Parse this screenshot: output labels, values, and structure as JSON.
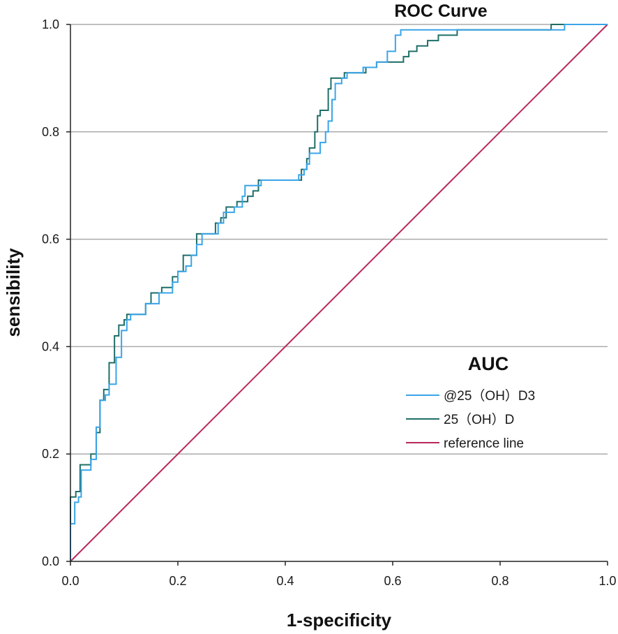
{
  "chart_data": {
    "type": "line",
    "title": "ROC Curve",
    "xlabel": "1-specificity",
    "ylabel": "sensibility",
    "xlim": [
      0,
      1
    ],
    "ylim": [
      0,
      1
    ],
    "xticks": [
      0,
      0.2,
      0.4,
      0.6,
      0.8,
      1.0
    ],
    "xtick_labels": [
      "0.0",
      "0.2",
      "0.4",
      "0.6",
      "0.8",
      "1.0"
    ],
    "yticks": [
      0,
      0.2,
      0.4,
      0.6,
      0.8,
      1.0
    ],
    "ytick_labels": [
      "0.0",
      "0.2",
      "0.4",
      "0.6",
      "0.8",
      "1.0"
    ],
    "grid_y": true,
    "legend_title": "AUC",
    "colors": {
      "axis": "#222222",
      "grid": "#ababab"
    },
    "series": [
      {
        "name": "@25（OH）D3",
        "color": "#3aa4e8",
        "points": [
          [
            0,
            0
          ],
          [
            0,
            0.07
          ],
          [
            0.008,
            0.07
          ],
          [
            0.008,
            0.11
          ],
          [
            0.015,
            0.11
          ],
          [
            0.015,
            0.12
          ],
          [
            0.02,
            0.12
          ],
          [
            0.02,
            0.17
          ],
          [
            0.038,
            0.17
          ],
          [
            0.038,
            0.19
          ],
          [
            0.048,
            0.19
          ],
          [
            0.048,
            0.25
          ],
          [
            0.055,
            0.25
          ],
          [
            0.055,
            0.3
          ],
          [
            0.065,
            0.3
          ],
          [
            0.065,
            0.31
          ],
          [
            0.072,
            0.31
          ],
          [
            0.072,
            0.33
          ],
          [
            0.085,
            0.33
          ],
          [
            0.085,
            0.38
          ],
          [
            0.095,
            0.38
          ],
          [
            0.095,
            0.43
          ],
          [
            0.105,
            0.43
          ],
          [
            0.105,
            0.45
          ],
          [
            0.112,
            0.45
          ],
          [
            0.112,
            0.46
          ],
          [
            0.14,
            0.46
          ],
          [
            0.14,
            0.48
          ],
          [
            0.165,
            0.48
          ],
          [
            0.165,
            0.5
          ],
          [
            0.19,
            0.5
          ],
          [
            0.19,
            0.52
          ],
          [
            0.2,
            0.52
          ],
          [
            0.2,
            0.54
          ],
          [
            0.215,
            0.54
          ],
          [
            0.215,
            0.55
          ],
          [
            0.225,
            0.55
          ],
          [
            0.225,
            0.57
          ],
          [
            0.235,
            0.57
          ],
          [
            0.235,
            0.59
          ],
          [
            0.245,
            0.59
          ],
          [
            0.245,
            0.61
          ],
          [
            0.275,
            0.61
          ],
          [
            0.275,
            0.63
          ],
          [
            0.285,
            0.63
          ],
          [
            0.285,
            0.65
          ],
          [
            0.305,
            0.65
          ],
          [
            0.305,
            0.66
          ],
          [
            0.32,
            0.66
          ],
          [
            0.32,
            0.68
          ],
          [
            0.325,
            0.68
          ],
          [
            0.325,
            0.7
          ],
          [
            0.355,
            0.7
          ],
          [
            0.355,
            0.71
          ],
          [
            0.425,
            0.71
          ],
          [
            0.425,
            0.72
          ],
          [
            0.435,
            0.72
          ],
          [
            0.435,
            0.73
          ],
          [
            0.44,
            0.73
          ],
          [
            0.44,
            0.74
          ],
          [
            0.445,
            0.74
          ],
          [
            0.445,
            0.76
          ],
          [
            0.465,
            0.76
          ],
          [
            0.465,
            0.78
          ],
          [
            0.475,
            0.78
          ],
          [
            0.475,
            0.8
          ],
          [
            0.48,
            0.8
          ],
          [
            0.48,
            0.82
          ],
          [
            0.487,
            0.82
          ],
          [
            0.487,
            0.86
          ],
          [
            0.493,
            0.86
          ],
          [
            0.493,
            0.89
          ],
          [
            0.505,
            0.89
          ],
          [
            0.505,
            0.9
          ],
          [
            0.515,
            0.9
          ],
          [
            0.515,
            0.91
          ],
          [
            0.545,
            0.91
          ],
          [
            0.545,
            0.92
          ],
          [
            0.57,
            0.92
          ],
          [
            0.57,
            0.93
          ],
          [
            0.59,
            0.93
          ],
          [
            0.59,
            0.95
          ],
          [
            0.605,
            0.95
          ],
          [
            0.605,
            0.98
          ],
          [
            0.615,
            0.98
          ],
          [
            0.615,
            0.99
          ],
          [
            0.92,
            0.99
          ],
          [
            0.92,
            1.0
          ],
          [
            1,
            1
          ]
        ]
      },
      {
        "name": "25（OH）D",
        "color": "#1f6e68",
        "points": [
          [
            0,
            0
          ],
          [
            0,
            0.12
          ],
          [
            0.01,
            0.12
          ],
          [
            0.01,
            0.13
          ],
          [
            0.018,
            0.13
          ],
          [
            0.018,
            0.18
          ],
          [
            0.038,
            0.18
          ],
          [
            0.038,
            0.2
          ],
          [
            0.048,
            0.2
          ],
          [
            0.048,
            0.24
          ],
          [
            0.055,
            0.24
          ],
          [
            0.055,
            0.3
          ],
          [
            0.062,
            0.3
          ],
          [
            0.062,
            0.32
          ],
          [
            0.072,
            0.32
          ],
          [
            0.072,
            0.37
          ],
          [
            0.082,
            0.37
          ],
          [
            0.082,
            0.42
          ],
          [
            0.09,
            0.42
          ],
          [
            0.09,
            0.44
          ],
          [
            0.1,
            0.44
          ],
          [
            0.1,
            0.45
          ],
          [
            0.105,
            0.45
          ],
          [
            0.105,
            0.46
          ],
          [
            0.14,
            0.46
          ],
          [
            0.14,
            0.48
          ],
          [
            0.15,
            0.48
          ],
          [
            0.15,
            0.5
          ],
          [
            0.17,
            0.5
          ],
          [
            0.17,
            0.51
          ],
          [
            0.19,
            0.51
          ],
          [
            0.19,
            0.53
          ],
          [
            0.2,
            0.53
          ],
          [
            0.2,
            0.54
          ],
          [
            0.21,
            0.54
          ],
          [
            0.21,
            0.57
          ],
          [
            0.235,
            0.57
          ],
          [
            0.235,
            0.61
          ],
          [
            0.27,
            0.61
          ],
          [
            0.27,
            0.63
          ],
          [
            0.28,
            0.63
          ],
          [
            0.28,
            0.64
          ],
          [
            0.29,
            0.64
          ],
          [
            0.29,
            0.66
          ],
          [
            0.31,
            0.66
          ],
          [
            0.31,
            0.67
          ],
          [
            0.33,
            0.67
          ],
          [
            0.33,
            0.68
          ],
          [
            0.34,
            0.68
          ],
          [
            0.34,
            0.69
          ],
          [
            0.35,
            0.69
          ],
          [
            0.35,
            0.71
          ],
          [
            0.43,
            0.71
          ],
          [
            0.43,
            0.73
          ],
          [
            0.44,
            0.73
          ],
          [
            0.44,
            0.75
          ],
          [
            0.445,
            0.75
          ],
          [
            0.445,
            0.77
          ],
          [
            0.455,
            0.77
          ],
          [
            0.455,
            0.8
          ],
          [
            0.46,
            0.8
          ],
          [
            0.46,
            0.83
          ],
          [
            0.465,
            0.83
          ],
          [
            0.465,
            0.84
          ],
          [
            0.48,
            0.84
          ],
          [
            0.48,
            0.88
          ],
          [
            0.485,
            0.88
          ],
          [
            0.485,
            0.9
          ],
          [
            0.51,
            0.9
          ],
          [
            0.51,
            0.91
          ],
          [
            0.55,
            0.91
          ],
          [
            0.55,
            0.92
          ],
          [
            0.57,
            0.92
          ],
          [
            0.57,
            0.93
          ],
          [
            0.62,
            0.93
          ],
          [
            0.62,
            0.94
          ],
          [
            0.63,
            0.94
          ],
          [
            0.63,
            0.95
          ],
          [
            0.645,
            0.95
          ],
          [
            0.645,
            0.96
          ],
          [
            0.665,
            0.96
          ],
          [
            0.665,
            0.97
          ],
          [
            0.685,
            0.97
          ],
          [
            0.685,
            0.98
          ],
          [
            0.72,
            0.98
          ],
          [
            0.72,
            0.99
          ],
          [
            0.895,
            0.99
          ],
          [
            0.895,
            1.0
          ],
          [
            1,
            1
          ]
        ]
      },
      {
        "name": "reference line",
        "color": "#b8285c",
        "points": [
          [
            0,
            0
          ],
          [
            1,
            1
          ]
        ]
      }
    ]
  }
}
